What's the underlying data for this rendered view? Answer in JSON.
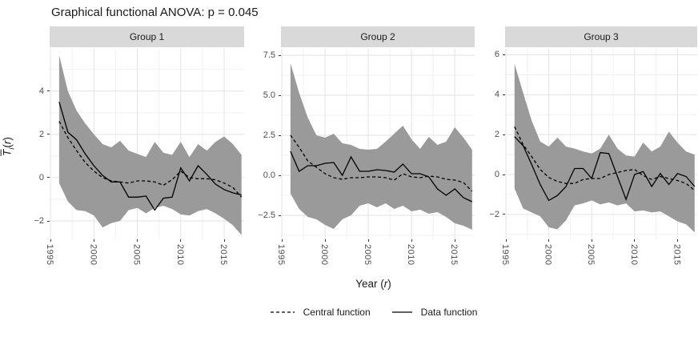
{
  "title": "Graphical functional ANOVA: p = 0.045",
  "y_axis": {
    "symbol": "T",
    "subscript": "i",
    "paren_open": "(",
    "argument": "r",
    "paren_close": ")"
  },
  "x_axis": {
    "prefix": "Year (",
    "argument": "r",
    "suffix": ")"
  },
  "colors": {
    "band": "#9a9a9a",
    "line": "#000000",
    "strip_bg": "#d9d9d9",
    "grid_major": "#e3e3e3",
    "grid_minor": "#f1f1f1",
    "tick_label": "#4d4d4d"
  },
  "chart_data": {
    "type": "line",
    "title": "Graphical functional ANOVA: p = 0.045",
    "xlabel": "Year (r)",
    "ylabel": "T̄i(r)",
    "x": [
      1996,
      1997,
      1998,
      1999,
      2000,
      2001,
      2002,
      2003,
      2004,
      2005,
      2006,
      2007,
      2008,
      2009,
      2010,
      2011,
      2012,
      2013,
      2014,
      2015,
      2016,
      2017
    ],
    "xlim": [
      1994.9,
      2017.3
    ],
    "xticks": [
      1995,
      2000,
      2005,
      2010,
      2015
    ],
    "xticks_minor": [
      1997.5,
      2002.5,
      2007.5,
      2012.5
    ],
    "legend": [
      {
        "label": "Central function",
        "style": "dashed"
      },
      {
        "label": "Data function",
        "style": "solid"
      }
    ],
    "panels": [
      {
        "title": "Group 1",
        "ylim": [
          -2.85,
          5.95
        ],
        "yticks": [
          4,
          2,
          0,
          -2
        ],
        "ytick_labels": [
          "4",
          "2",
          "0",
          "−2"
        ],
        "yticks_minor": [
          5,
          3,
          1,
          -1
        ],
        "band_upper": [
          5.65,
          4.0,
          3.1,
          2.5,
          2.0,
          1.55,
          1.4,
          1.7,
          1.25,
          1.1,
          0.95,
          1.65,
          1.15,
          1.05,
          1.65,
          0.95,
          1.55,
          1.25,
          1.65,
          1.9,
          1.55,
          1.05
        ],
        "band_lower": [
          -0.25,
          -1.1,
          -1.5,
          -1.55,
          -1.75,
          -2.3,
          -2.1,
          -2.0,
          -1.5,
          -1.4,
          -1.65,
          -1.4,
          -1.3,
          -1.45,
          -1.7,
          -1.75,
          -1.55,
          -1.45,
          -1.65,
          -1.9,
          -2.2,
          -2.65
        ],
        "central": [
          2.6,
          1.85,
          1.25,
          0.7,
          0.3,
          0.0,
          -0.15,
          -0.2,
          -0.25,
          -0.15,
          -0.15,
          -0.2,
          -0.35,
          -0.1,
          0.3,
          0.0,
          -0.05,
          -0.05,
          -0.1,
          -0.25,
          -0.45,
          -0.9
        ],
        "data_function": [
          3.5,
          2.1,
          1.75,
          1.1,
          0.55,
          0.1,
          -0.2,
          -0.2,
          -0.9,
          -0.9,
          -0.85,
          -1.5,
          -0.95,
          -0.9,
          0.45,
          -0.15,
          0.55,
          0.15,
          -0.3,
          -0.55,
          -0.7,
          -0.8
        ]
      },
      {
        "title": "Group 2",
        "ylim": [
          -4.0,
          7.9
        ],
        "yticks": [
          7.5,
          5.0,
          2.5,
          0.0,
          -2.5
        ],
        "ytick_labels": [
          "7.5",
          "5.0",
          "2.5",
          "0.0",
          "−2.5"
        ],
        "yticks_minor": [
          6.25,
          3.75,
          1.25,
          -1.25,
          -3.75
        ],
        "band_upper": [
          7.0,
          5.15,
          3.6,
          2.5,
          2.35,
          2.6,
          2.0,
          1.9,
          1.65,
          1.6,
          1.65,
          2.1,
          2.6,
          3.1,
          2.25,
          1.65,
          2.4,
          1.9,
          2.1,
          3.0,
          2.35,
          1.6
        ],
        "band_lower": [
          -1.15,
          -2.1,
          -2.6,
          -2.75,
          -3.1,
          -3.35,
          -2.75,
          -2.5,
          -1.9,
          -1.75,
          -2.0,
          -1.75,
          -2.1,
          -1.9,
          -2.25,
          -2.15,
          -2.4,
          -2.3,
          -2.6,
          -3.0,
          -3.15,
          -3.4
        ],
        "central": [
          2.5,
          1.75,
          0.9,
          0.5,
          0.1,
          -0.15,
          -0.25,
          -0.15,
          -0.15,
          -0.1,
          -0.1,
          -0.15,
          -0.3,
          0.1,
          -0.1,
          -0.15,
          -0.05,
          -0.1,
          -0.25,
          -0.3,
          -0.45,
          -1.0
        ],
        "data_function": [
          1.5,
          0.25,
          0.6,
          0.6,
          0.75,
          0.8,
          0.0,
          1.15,
          0.25,
          0.25,
          0.35,
          0.3,
          0.2,
          0.7,
          0.1,
          0.1,
          -0.1,
          -0.85,
          -1.25,
          -0.85,
          -1.4,
          -1.65
        ]
      },
      {
        "title": "Group 3",
        "ylim": [
          -3.25,
          6.3
        ],
        "yticks": [
          6,
          4,
          2,
          0,
          -2
        ],
        "ytick_labels": [
          "6",
          "4",
          "2",
          "0",
          "−2"
        ],
        "yticks_minor": [
          5,
          3,
          1,
          -1,
          -3
        ],
        "band_upper": [
          5.55,
          4.1,
          2.7,
          1.65,
          1.4,
          1.85,
          1.4,
          1.3,
          1.15,
          1.05,
          1.3,
          2.0,
          1.3,
          0.95,
          0.9,
          1.6,
          1.15,
          1.4,
          2.15,
          1.6,
          1.15,
          1.0
        ],
        "band_lower": [
          -0.7,
          -1.7,
          -1.9,
          -2.1,
          -2.65,
          -2.75,
          -2.3,
          -1.55,
          -1.45,
          -1.3,
          -1.5,
          -1.4,
          -1.55,
          -1.45,
          -1.85,
          -1.8,
          -1.9,
          -1.85,
          -2.1,
          -2.35,
          -2.5,
          -2.9
        ],
        "central": [
          2.4,
          1.5,
          0.9,
          0.25,
          -0.15,
          -0.35,
          -0.45,
          -0.45,
          -0.25,
          -0.2,
          -0.2,
          0.0,
          0.1,
          0.2,
          0.25,
          -0.05,
          -0.25,
          -0.1,
          -0.2,
          -0.3,
          -0.45,
          -0.8
        ],
        "data_function": [
          1.9,
          1.45,
          0.5,
          -0.5,
          -1.3,
          -1.05,
          -0.6,
          0.3,
          0.3,
          -0.2,
          1.1,
          1.05,
          -0.1,
          -1.25,
          0.0,
          0.15,
          -0.6,
          0.05,
          -0.5,
          0.05,
          -0.1,
          -0.6
        ]
      }
    ]
  }
}
